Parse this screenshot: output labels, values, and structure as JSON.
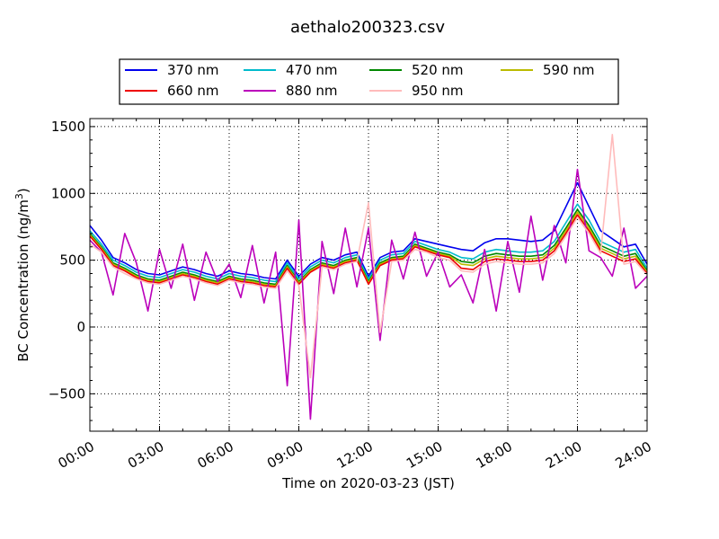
{
  "chart_data": {
    "type": "line",
    "title": "aethalo200323.csv",
    "xlabel": "Time on 2020-03-23 (JST)",
    "ylabel_main": "BC Concentration (ng/m",
    "ylabel_sup": "3",
    "ylabel_tail": ")",
    "xlim": [
      "2020-03-23 00:00",
      "2020-03-24 00:00"
    ],
    "ylim": [
      -780,
      1560
    ],
    "x_ticks": [
      "00:00",
      "03:00",
      "06:00",
      "09:00",
      "12:00",
      "15:00",
      "18:00",
      "21:00",
      "24:00"
    ],
    "y_ticks": [
      -500,
      0,
      500,
      1000,
      1500
    ],
    "grid": "dotted",
    "legend_position": "top",
    "legend": [
      "370 nm",
      "470 nm",
      "520 nm",
      "590 nm",
      "660 nm",
      "880 nm",
      "950 nm"
    ],
    "x_hours": [
      0.0,
      0.5,
      1.0,
      1.5,
      2.0,
      2.5,
      3.0,
      3.5,
      4.0,
      4.5,
      5.0,
      5.5,
      6.0,
      6.5,
      7.0,
      7.5,
      8.0,
      8.5,
      9.0,
      9.5,
      10.0,
      10.5,
      11.0,
      11.5,
      12.0,
      12.5,
      13.0,
      13.5,
      14.0,
      14.5,
      15.0,
      15.5,
      16.0,
      16.5,
      17.0,
      17.5,
      18.0,
      18.5,
      19.0,
      19.5,
      20.0,
      20.5,
      21.0,
      21.5,
      22.0,
      22.5,
      23.0,
      23.5,
      24.0
    ],
    "series": [
      {
        "name": "370 nm",
        "color": "#0000ee",
        "values": [
          760,
          650,
          520,
          480,
          430,
          400,
          390,
          420,
          450,
          430,
          400,
          380,
          420,
          400,
          390,
          370,
          360,
          500,
          380,
          470,
          520,
          500,
          540,
          560,
          380,
          520,
          560,
          570,
          660,
          640,
          620,
          600,
          580,
          570,
          630,
          660,
          660,
          650,
          640,
          650,
          720,
          900,
          1080,
          900,
          720,
          660,
          600,
          620,
          470
        ]
      },
      {
        "name": "470 nm",
        "color": "#00bbcc",
        "values": [
          720,
          620,
          500,
          460,
          410,
          380,
          370,
          400,
          430,
          410,
          380,
          360,
          400,
          380,
          370,
          350,
          340,
          480,
          360,
          450,
          500,
          480,
          520,
          540,
          360,
          500,
          540,
          550,
          640,
          610,
          580,
          560,
          520,
          510,
          560,
          580,
          570,
          560,
          560,
          570,
          640,
          780,
          920,
          800,
          640,
          600,
          560,
          580,
          440
        ]
      },
      {
        "name": "520 nm",
        "color": "#008800",
        "values": [
          700,
          600,
          480,
          440,
          390,
          360,
          350,
          380,
          410,
          390,
          360,
          340,
          380,
          360,
          350,
          330,
          320,
          460,
          340,
          430,
          480,
          460,
          500,
          520,
          340,
          480,
          520,
          530,
          620,
          590,
          560,
          540,
          490,
          480,
          530,
          550,
          540,
          530,
          530,
          540,
          610,
          740,
          880,
          760,
          610,
          570,
          530,
          550,
          420
        ]
      },
      {
        "name": "590 nm",
        "color": "#bbbb00",
        "values": [
          690,
          590,
          470,
          430,
          380,
          350,
          340,
          370,
          400,
          380,
          350,
          330,
          370,
          350,
          340,
          320,
          310,
          450,
          330,
          420,
          470,
          450,
          490,
          510,
          330,
          470,
          510,
          520,
          610,
          580,
          550,
          530,
          470,
          460,
          510,
          530,
          520,
          510,
          510,
          520,
          590,
          720,
          860,
          740,
          590,
          550,
          510,
          530,
          410
        ]
      },
      {
        "name": "660 nm",
        "color": "#ee0000",
        "values": [
          680,
          580,
          460,
          420,
          370,
          340,
          330,
          360,
          390,
          370,
          340,
          320,
          360,
          340,
          330,
          310,
          300,
          440,
          320,
          410,
          460,
          440,
          480,
          500,
          320,
          460,
          500,
          510,
          600,
          570,
          540,
          520,
          440,
          430,
          490,
          510,
          500,
          490,
          490,
          500,
          570,
          700,
          840,
          720,
          570,
          530,
          490,
          510,
          400
        ]
      },
      {
        "name": "880 nm",
        "color": "#bb00bb",
        "values": [
          650,
          560,
          240,
          700,
          480,
          120,
          580,
          290,
          620,
          200,
          560,
          340,
          470,
          220,
          610,
          180,
          560,
          -440,
          800,
          -690,
          640,
          250,
          740,
          300,
          740,
          -100,
          650,
          360,
          710,
          380,
          560,
          300,
          390,
          180,
          580,
          120,
          640,
          260,
          830,
          350,
          760,
          480,
          1180,
          570,
          520,
          380,
          740,
          290,
          380
        ]
      },
      {
        "name": "950 nm",
        "color": "#ffbbbb",
        "values": [
          620,
          560,
          450,
          400,
          360,
          330,
          320,
          350,
          380,
          360,
          330,
          310,
          350,
          330,
          320,
          300,
          290,
          420,
          310,
          -380,
          450,
          430,
          470,
          490,
          930,
          -40,
          490,
          500,
          580,
          560,
          520,
          500,
          420,
          410,
          470,
          490,
          480,
          470,
          470,
          480,
          550,
          680,
          820,
          700,
          550,
          1440,
          470,
          490,
          390
        ]
      }
    ]
  }
}
